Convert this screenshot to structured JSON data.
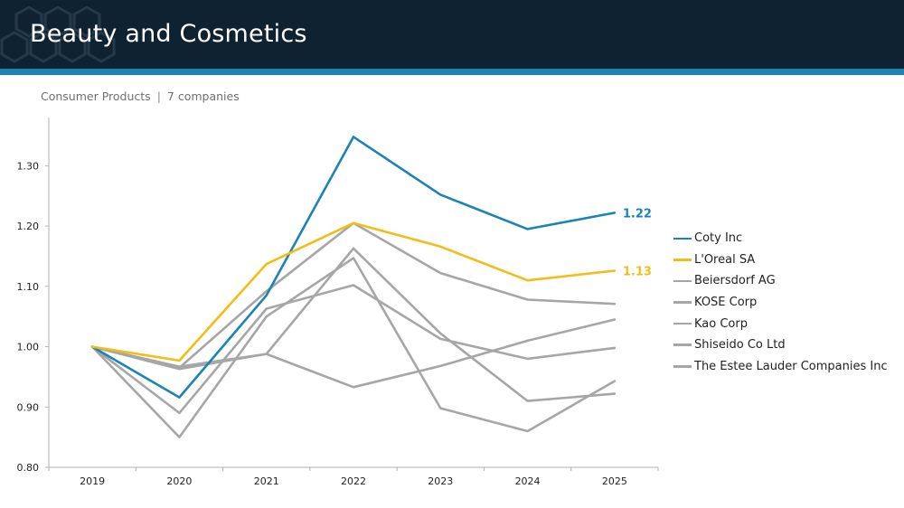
{
  "header": {
    "title": "Beauty and Cosmetics"
  },
  "subtitle": {
    "sector": "Consumer Products",
    "separator": "|",
    "count": "7 companies"
  },
  "colors": {
    "header_bg": "#0f2231",
    "accent_bar": "#1a84b4",
    "coty": "#1a84b4",
    "loreal": "#f2bd14",
    "peers": "#a6a6a6"
  },
  "chart_data": {
    "type": "line",
    "categories": [
      "2019",
      "2020",
      "2021",
      "2022",
      "2023",
      "2024",
      "2025"
    ],
    "ylim": [
      0.8,
      1.38
    ],
    "yticks": [
      "0.80",
      "0.90",
      "1.00",
      "1.10",
      "1.20",
      "1.30"
    ],
    "grid": false,
    "legend_position": "right",
    "series": [
      {
        "name": "Coty Inc",
        "color": "#1a84b4",
        "end_label": "1.22",
        "values": [
          1.0,
          0.916,
          1.085,
          1.348,
          1.252,
          1.195,
          1.222
        ]
      },
      {
        "name": "L'Oreal SA",
        "color": "#f2bd14",
        "end_label": "1.13",
        "values": [
          1.0,
          0.977,
          1.137,
          1.205,
          1.166,
          1.11,
          1.126
        ]
      },
      {
        "name": "Beiersdorf AG",
        "color": "#a6a6a6",
        "values": [
          1.0,
          0.965,
          1.092,
          1.205,
          1.122,
          1.078,
          1.071
        ]
      },
      {
        "name": "KOSE Corp",
        "color": "#a6a6a6",
        "values": [
          1.0,
          0.89,
          1.063,
          1.102,
          1.013,
          0.98,
          0.998
        ]
      },
      {
        "name": "Kao Corp",
        "color": "#a6a6a6",
        "values": [
          1.0,
          0.963,
          0.988,
          0.933,
          0.968,
          1.01,
          1.045
        ]
      },
      {
        "name": "Shiseido Co Ltd",
        "color": "#a6a6a6",
        "values": [
          1.0,
          0.85,
          1.05,
          1.147,
          0.898,
          0.86,
          0.943
        ]
      },
      {
        "name": "The Estee Lauder Companies Inc",
        "color": "#a6a6a6",
        "values": [
          1.0,
          0.967,
          0.988,
          1.163,
          1.022,
          0.91,
          0.922
        ]
      }
    ]
  }
}
